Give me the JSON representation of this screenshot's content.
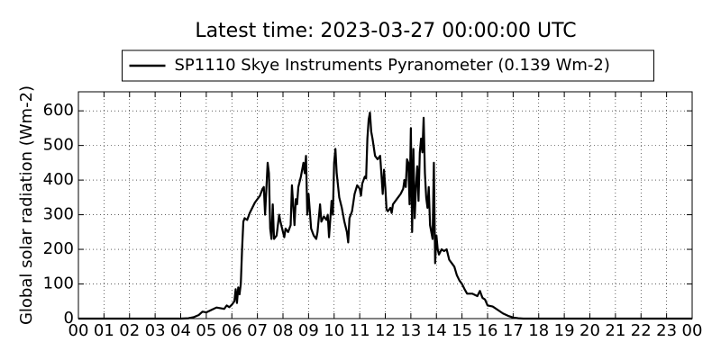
{
  "chart_data": {
    "type": "line",
    "title": "Latest time: 2023-03-27 00:00:00 UTC",
    "y_label": "Global solar radiation (Wm-2)",
    "legend": "upper center",
    "grid": true,
    "x": [
      0,
      4.0,
      4.3,
      4.5,
      4.7,
      4.85,
      5.0,
      5.2,
      5.4,
      5.55,
      5.7,
      5.8,
      5.9,
      6.0,
      6.1,
      6.15,
      6.2,
      6.25,
      6.3,
      6.35,
      6.4,
      6.45,
      6.5,
      6.6,
      6.7,
      6.8,
      6.9,
      7.0,
      7.1,
      7.2,
      7.25,
      7.3,
      7.4,
      7.45,
      7.5,
      7.55,
      7.6,
      7.65,
      7.75,
      7.85,
      7.9,
      8.0,
      8.05,
      8.1,
      8.2,
      8.3,
      8.35,
      8.45,
      8.5,
      8.55,
      8.6,
      8.7,
      8.8,
      8.85,
      8.9,
      8.95,
      9.0,
      9.1,
      9.2,
      9.3,
      9.35,
      9.45,
      9.5,
      9.6,
      9.7,
      9.75,
      9.8,
      9.9,
      9.95,
      10.0,
      10.05,
      10.1,
      10.2,
      10.3,
      10.4,
      10.5,
      10.55,
      10.6,
      10.7,
      10.8,
      10.9,
      11.0,
      11.05,
      11.1,
      11.2,
      11.25,
      11.3,
      11.35,
      11.4,
      11.45,
      11.5,
      11.6,
      11.7,
      11.8,
      11.9,
      11.95,
      12.0,
      12.05,
      12.1,
      12.2,
      12.25,
      12.3,
      12.4,
      12.5,
      12.6,
      12.7,
      12.75,
      12.8,
      12.85,
      12.9,
      12.95,
      13.0,
      13.05,
      13.1,
      13.15,
      13.2,
      13.25,
      13.3,
      13.35,
      13.4,
      13.45,
      13.5,
      13.55,
      13.6,
      13.65,
      13.7,
      13.75,
      13.8,
      13.85,
      13.9,
      13.95,
      14.0,
      14.05,
      14.1,
      14.2,
      14.3,
      14.4,
      14.5,
      14.6,
      14.7,
      14.8,
      14.9,
      15.0,
      15.1,
      15.2,
      15.4,
      15.6,
      15.7,
      15.8,
      15.9,
      16.0,
      16.2,
      16.4,
      16.6,
      16.8,
      17.0,
      17.2,
      17.4,
      24
    ],
    "series": [
      {
        "name": "SP1110 Skye Instruments Pyranometer (0.139 Wm-2)",
        "color": "#000000",
        "values": [
          0,
          0,
          1,
          4,
          10,
          20,
          18,
          25,
          32,
          30,
          28,
          38,
          33,
          40,
          50,
          85,
          45,
          90,
          70,
          100,
          200,
          280,
          290,
          285,
          305,
          320,
          335,
          345,
          355,
          375,
          380,
          300,
          450,
          420,
          260,
          230,
          330,
          230,
          240,
          300,
          280,
          250,
          235,
          260,
          250,
          270,
          385,
          270,
          345,
          330,
          380,
          410,
          450,
          420,
          470,
          300,
          360,
          260,
          240,
          230,
          250,
          330,
          280,
          295,
          285,
          300,
          235,
          340,
          300,
          450,
          490,
          420,
          350,
          320,
          280,
          250,
          220,
          290,
          310,
          360,
          385,
          375,
          355,
          390,
          410,
          405,
          520,
          575,
          595,
          540,
          520,
          470,
          460,
          470,
          360,
          430,
          380,
          315,
          310,
          320,
          305,
          330,
          340,
          350,
          360,
          375,
          400,
          380,
          460,
          450,
          330,
          550,
          250,
          490,
          290,
          380,
          440,
          340,
          480,
          520,
          480,
          580,
          420,
          350,
          320,
          380,
          270,
          250,
          230,
          450,
          160,
          240,
          200,
          185,
          200,
          195,
          200,
          170,
          160,
          150,
          125,
          110,
          100,
          85,
          72,
          72,
          65,
          80,
          60,
          55,
          38,
          35,
          25,
          15,
          8,
          3,
          1,
          0,
          0
        ]
      }
    ],
    "xlim": [
      0,
      24
    ],
    "xticks": [
      {
        "value": 0,
        "label": "00"
      },
      {
        "value": 1,
        "label": "01"
      },
      {
        "value": 2,
        "label": "02"
      },
      {
        "value": 3,
        "label": "03"
      },
      {
        "value": 4,
        "label": "04"
      },
      {
        "value": 5,
        "label": "05"
      },
      {
        "value": 6,
        "label": "06"
      },
      {
        "value": 7,
        "label": "07"
      },
      {
        "value": 8,
        "label": "08"
      },
      {
        "value": 9,
        "label": "09"
      },
      10,
      11,
      12,
      13,
      14,
      15,
      16,
      17,
      18,
      19,
      20,
      21,
      22,
      23,
      {
        "value": 24,
        "label": "00"
      }
    ],
    "ylim": [
      0,
      655
    ],
    "yticks": [
      0,
      100,
      200,
      300,
      400,
      500,
      600
    ]
  }
}
